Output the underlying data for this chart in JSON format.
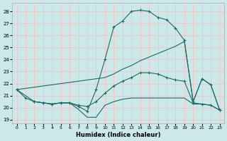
{
  "xlabel": "Humidex (Indice chaleur)",
  "background_color": "#cce8e8",
  "grid_color": "#f0c8c8",
  "line_color": "#1a6b62",
  "xlim": [
    -0.5,
    23.5
  ],
  "ylim": [
    18.7,
    28.7
  ],
  "xticks": [
    0,
    1,
    2,
    3,
    4,
    5,
    6,
    7,
    8,
    9,
    10,
    11,
    12,
    13,
    14,
    15,
    16,
    17,
    18,
    19,
    20,
    21,
    22,
    23
  ],
  "yticks": [
    19,
    20,
    21,
    22,
    23,
    24,
    25,
    26,
    27,
    28
  ],
  "curve_top_x": [
    0,
    1,
    2,
    3,
    4,
    5,
    6,
    7,
    8,
    9,
    10,
    11,
    12,
    13,
    14,
    15,
    16,
    17,
    18,
    19,
    20,
    21,
    22,
    23
  ],
  "curve_top_y": [
    21.5,
    20.8,
    20.5,
    20.4,
    20.3,
    20.4,
    20.4,
    20.1,
    19.7,
    21.5,
    24.0,
    26.7,
    27.2,
    28.0,
    28.1,
    28.0,
    27.5,
    27.3,
    26.6,
    25.6,
    20.5,
    22.4,
    21.9,
    19.8
  ],
  "curve_mid_x": [
    0,
    2,
    3,
    4,
    5,
    6,
    7,
    8,
    9,
    10,
    11,
    12,
    13,
    14,
    15,
    16,
    17,
    18,
    19,
    20,
    21,
    22,
    23
  ],
  "curve_mid_y": [
    21.5,
    20.5,
    20.4,
    20.3,
    20.4,
    20.4,
    20.2,
    20.1,
    20.5,
    21.2,
    21.8,
    22.2,
    22.5,
    22.9,
    22.9,
    22.8,
    22.5,
    22.3,
    22.2,
    20.4,
    20.3,
    20.2,
    19.8
  ],
  "line_diag_x": [
    0,
    10,
    11,
    12,
    13,
    14,
    15,
    16,
    17,
    18,
    19,
    20,
    21,
    22,
    23
  ],
  "line_diag_y": [
    21.5,
    22.5,
    22.8,
    23.2,
    23.5,
    23.9,
    24.2,
    24.5,
    24.8,
    25.1,
    25.5,
    20.5,
    22.4,
    21.9,
    19.8
  ],
  "line_flat_x": [
    2,
    3,
    4,
    5,
    6,
    7,
    8,
    9,
    10,
    11,
    12,
    13,
    14,
    15,
    16,
    17,
    18,
    19,
    20,
    21,
    22,
    23
  ],
  "line_flat_y": [
    20.5,
    20.4,
    20.3,
    20.4,
    20.4,
    19.85,
    19.2,
    19.2,
    20.2,
    20.5,
    20.7,
    20.8,
    20.8,
    20.8,
    20.8,
    20.8,
    20.8,
    20.8,
    20.3,
    20.3,
    20.2,
    19.8
  ]
}
